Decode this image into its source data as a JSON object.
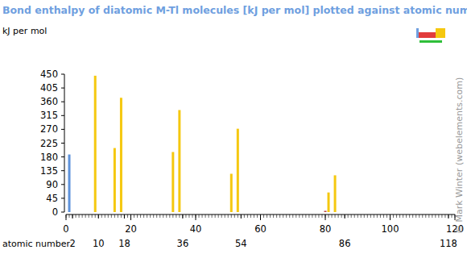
{
  "chart_data": {
    "type": "bar",
    "title": "Bond enthalpy of diatomic M-Tl molecules [kJ per mol] plotted against atomic number",
    "xlabel": "atomic number",
    "ylabel": "kJ per mol",
    "annotations": [
      "© Mark Winter (webelements.com)"
    ],
    "x": [
      1,
      9,
      15,
      17,
      33,
      35,
      51,
      53,
      80,
      81,
      83
    ],
    "values": [
      188,
      445,
      209,
      373,
      196,
      333,
      125,
      272,
      4,
      64,
      120
    ],
    "colors": [
      "#5f93db",
      "#f5c80f",
      "#f5c80f",
      "#f5c80f",
      "#f5c80f",
      "#f5c80f",
      "#f5c80f",
      "#f5c80f",
      "#b84848",
      "#f5c80f",
      "#f5c80f"
    ],
    "xlim": [
      0,
      120
    ],
    "xticks": [
      0,
      2,
      10,
      18,
      20,
      36,
      40,
      54,
      60,
      80,
      86,
      100,
      118,
      120
    ],
    "ylim": [
      0,
      450
    ],
    "yticks": [
      0,
      45,
      90,
      135,
      180,
      225,
      270,
      315,
      360,
      405,
      450
    ],
    "grid": false
  }
}
